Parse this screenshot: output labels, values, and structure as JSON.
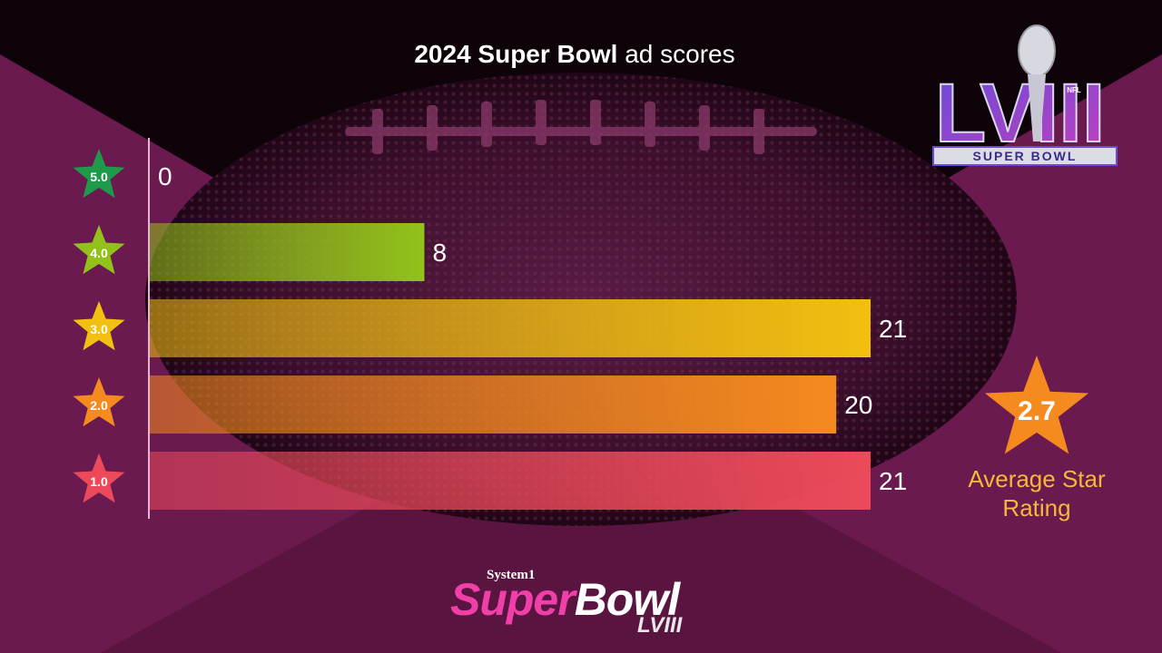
{
  "title": {
    "bold": "2024 Super Bowl",
    "rest": " ad scores"
  },
  "chart_data": {
    "type": "bar",
    "orientation": "horizontal",
    "categories": [
      "5.0",
      "4.0",
      "3.0",
      "2.0",
      "1.0"
    ],
    "values": [
      0,
      8,
      21,
      20,
      21
    ],
    "colors": [
      "#1e9a4a",
      "#92c21a",
      "#f2c010",
      "#f58a1f",
      "#ec4a5a"
    ],
    "xlim": [
      0,
      21
    ],
    "grid": false
  },
  "average": {
    "value": "2.7",
    "label_line1": "Average Star",
    "label_line2": "Rating",
    "color": "#f58a1f"
  },
  "logo": {
    "numeral": "LVIII",
    "caption": "SUPER BOWL",
    "league": "NFL"
  },
  "brand": {
    "company": "System1",
    "event_a": "Super",
    "event_b": "Bowl",
    "edition": "LVIII"
  }
}
